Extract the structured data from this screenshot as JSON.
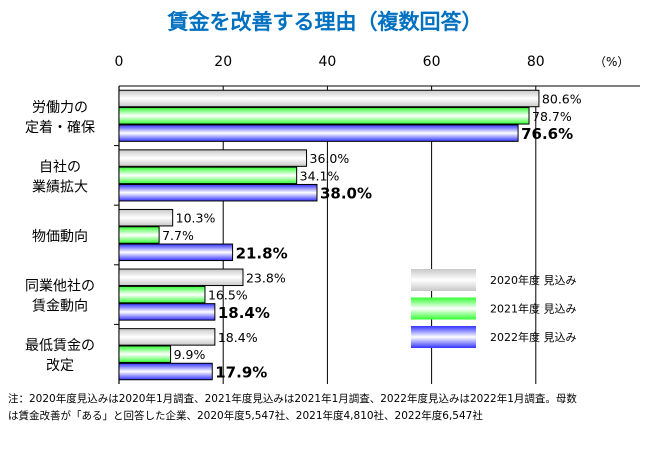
{
  "chart_data": {
    "type": "bar",
    "orientation": "horizontal",
    "title": "賃金を改善する理由（複数回答）",
    "unit": "（%）",
    "xlim": [
      0,
      100
    ],
    "ticks": [
      "0",
      "20",
      "40",
      "60",
      "80"
    ],
    "grid": true,
    "legend_position": "bottom-right",
    "categories": [
      [
        "労働力の",
        "定着・確保"
      ],
      [
        "自社の",
        "業績拡大"
      ],
      [
        "物価動向"
      ],
      [
        "同業他社の",
        "賃金動向"
      ],
      [
        "最低賃金の",
        "改定"
      ]
    ],
    "series": [
      {
        "name": "2020年度 見込み",
        "values": [
          80.6,
          36.0,
          10.3,
          23.8,
          18.4
        ],
        "labels": [
          "80.6%",
          "36.0%",
          "10.3%",
          "23.8%",
          "18.4%"
        ],
        "color": "#c8c8c8",
        "bold": false
      },
      {
        "name": "2021年度 見込み",
        "values": [
          78.7,
          34.1,
          7.7,
          16.5,
          9.9
        ],
        "labels": [
          "78.7%",
          "34.1%",
          "7.7%",
          "16.5%",
          "9.9%"
        ],
        "color": "#33ff33",
        "bold": false
      },
      {
        "name": "2022年度 見込み",
        "values": [
          76.6,
          38.0,
          21.8,
          18.4,
          17.9
        ],
        "labels": [
          "76.6%",
          "38.0%",
          "21.8%",
          "18.4%",
          "17.9%"
        ],
        "color": "#3333ff",
        "bold": true
      }
    ]
  },
  "note": {
    "line1": "注：2020年度見込みは2020年1月調査、2021年度見込みは2021年1月調査、2022年度見込みは2022年1月調査。母数",
    "line2": "は賃金改善が「ある」と回答した企業、2020年度5,547社、2021年度4,810社、2022年度6,547社"
  }
}
